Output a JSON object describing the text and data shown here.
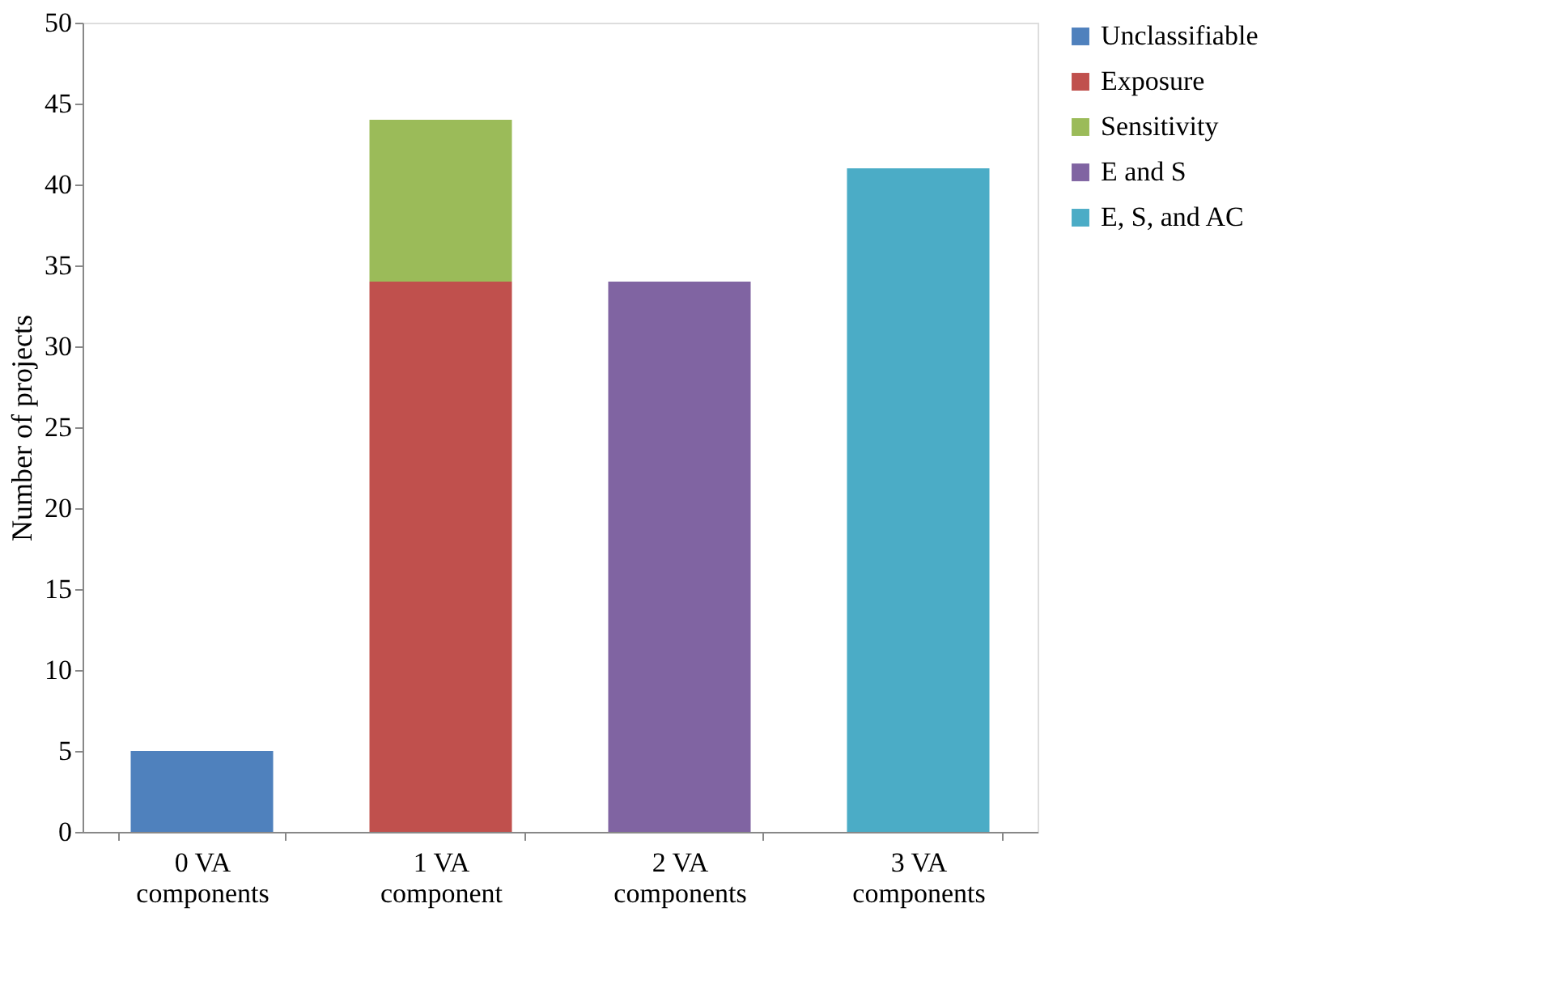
{
  "chart_data": {
    "type": "bar",
    "stacked": true,
    "ylabel": "Number of projects",
    "categories": [
      "0 VA components",
      "1 VA component",
      "2 VA components",
      "3 VA components"
    ],
    "series": [
      {
        "name": "Unclassifiable",
        "color": "#4f81bd",
        "values": [
          5,
          null,
          null,
          null
        ]
      },
      {
        "name": "Exposure",
        "color": "#c0504d",
        "values": [
          null,
          34,
          null,
          null
        ]
      },
      {
        "name": "Sensitivity",
        "color": "#9bbb59",
        "values": [
          null,
          10,
          null,
          null
        ]
      },
      {
        "name": "E and S",
        "color": "#8064a2",
        "values": [
          null,
          null,
          34,
          null
        ]
      },
      {
        "name": "E, S, and AC",
        "color": "#4bacc6",
        "values": [
          null,
          null,
          null,
          41
        ]
      }
    ],
    "ylim": [
      0,
      50
    ],
    "yticks": [
      0,
      5,
      10,
      15,
      20,
      25,
      30,
      35,
      40,
      45,
      50
    ],
    "grid": false,
    "legend": "right"
  }
}
